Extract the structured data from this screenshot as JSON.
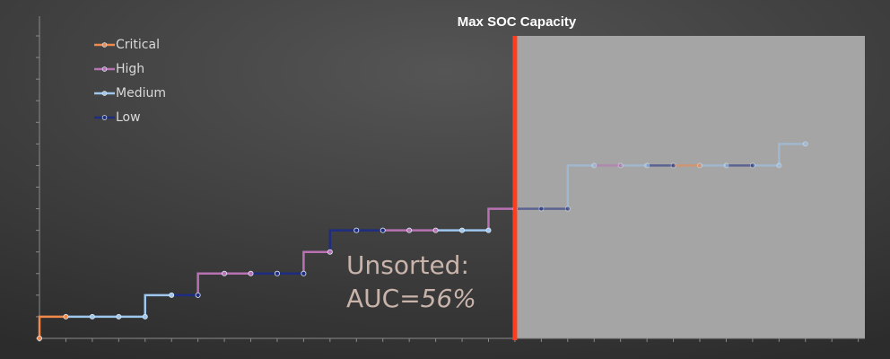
{
  "chart_data": {
    "type": "step",
    "title": "Max SOC Capacity",
    "legend": [
      {
        "name": "Critical",
        "color": "#f0894a"
      },
      {
        "name": "High",
        "color": "#b872b4"
      },
      {
        "name": "Medium",
        "color": "#9dc7ef"
      },
      {
        "name": "Low",
        "color": "#1e2d82"
      }
    ],
    "x": [
      0,
      1,
      2,
      3,
      4,
      5,
      6,
      7,
      8,
      9,
      10,
      11,
      12,
      13,
      14,
      15,
      16,
      17,
      18,
      19,
      20,
      21,
      22,
      23,
      24,
      25,
      26,
      27,
      28,
      29
    ],
    "values": [
      0,
      1,
      1,
      1,
      1,
      2,
      2,
      3,
      3,
      3,
      3,
      4,
      5,
      5,
      5,
      5,
      5,
      5,
      6,
      6,
      6,
      8,
      8,
      8,
      8,
      8,
      8,
      8,
      8,
      9
    ],
    "severity": [
      null,
      0,
      2,
      2,
      2,
      2,
      3,
      1,
      1,
      3,
      3,
      1,
      3,
      3,
      1,
      1,
      2,
      2,
      1,
      3,
      3,
      2,
      1,
      2,
      3,
      0,
      2,
      3,
      2,
      2
    ],
    "xlim": [
      0,
      31.25
    ],
    "ylim": [
      0,
      14
    ],
    "xticks": [
      0,
      1,
      2,
      3,
      4,
      5,
      6,
      7,
      8,
      9,
      10,
      11,
      12,
      13,
      14,
      15,
      16,
      17,
      18,
      19,
      20,
      21,
      22,
      23,
      24,
      25,
      26,
      27,
      28,
      29,
      30,
      31
    ],
    "yticks": [
      0,
      1,
      2,
      3,
      4,
      5,
      6,
      7,
      8,
      9,
      10,
      11,
      12,
      13,
      14
    ],
    "shaded_from": 18,
    "annotation": {
      "line1": "Unsorted:",
      "prefix": "AUC=",
      "emphasis": "56%"
    }
  }
}
